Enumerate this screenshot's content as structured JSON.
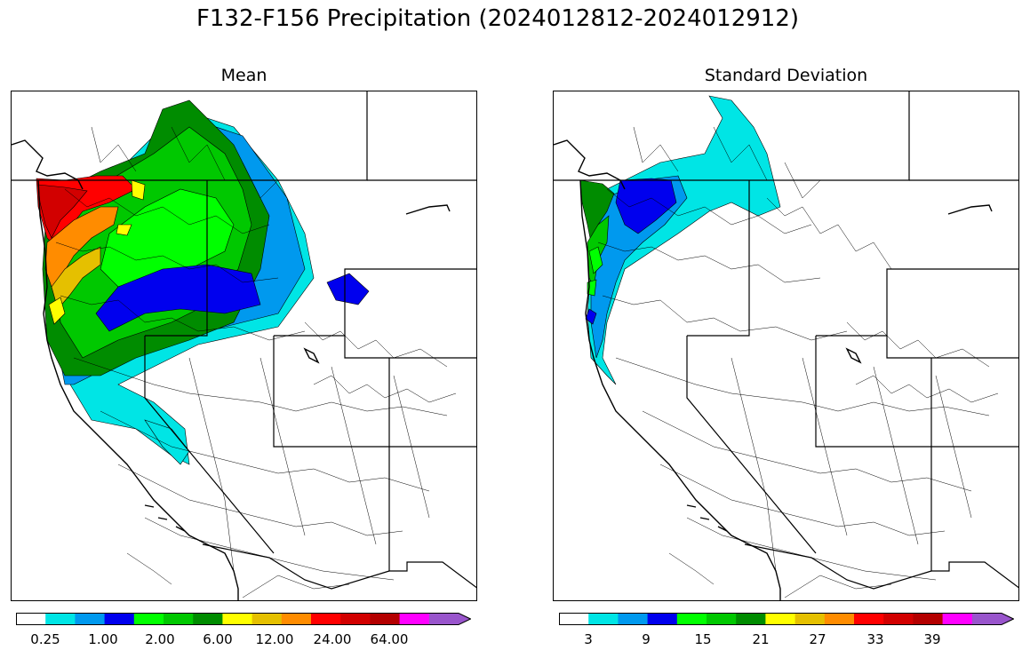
{
  "title": "F132-F156 Precipitation (2024012812-2024012912)",
  "panels": [
    {
      "name": "mean",
      "title": "Mean",
      "colors": [
        "#ffffff",
        "#00e5e5",
        "#0099ee",
        "#0000ee",
        "#00ff00",
        "#00c800",
        "#008c00",
        "#ffff00",
        "#e5c000",
        "#ff8c00",
        "#ff0000",
        "#d20000",
        "#b40000",
        "#ff00ff",
        "#9955cc"
      ],
      "tick_labels": [
        "0.25",
        "1.00",
        "2.00",
        "6.00",
        "12.00",
        "24.00",
        "64.00"
      ]
    },
    {
      "name": "stddev",
      "title": "Standard Deviation",
      "colors": [
        "#ffffff",
        "#00e5e5",
        "#0099ee",
        "#0000ee",
        "#00ff00",
        "#00c800",
        "#008c00",
        "#ffff00",
        "#e5c000",
        "#ff8c00",
        "#ff0000",
        "#d20000",
        "#b40000",
        "#ff00ff",
        "#9955cc"
      ],
      "tick_labels": [
        "3",
        "9",
        "15",
        "21",
        "27",
        "33",
        "39"
      ]
    }
  ]
}
